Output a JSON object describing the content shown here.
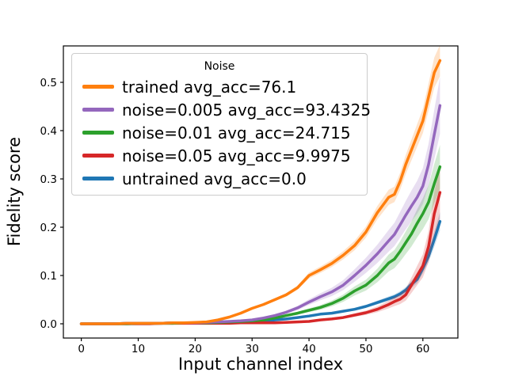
{
  "chart_data": {
    "type": "line",
    "title": "",
    "xlabel": "Input channel index",
    "ylabel": "Fidelity score",
    "xlim": [
      -3.15,
      66.15
    ],
    "ylim": [
      -0.0295,
      0.5754
    ],
    "xticks": [
      0,
      10,
      20,
      30,
      40,
      50,
      60
    ],
    "ytick_labels": [
      "0.0",
      "0.1",
      "0.2",
      "0.3",
      "0.4",
      "0.5"
    ],
    "grid": false,
    "legend": {
      "title": "Noise",
      "position": "upper left"
    },
    "x": [
      0,
      2,
      4,
      6,
      8,
      10,
      12,
      14,
      16,
      18,
      20,
      22,
      24,
      26,
      28,
      30,
      32,
      34,
      36,
      38,
      40,
      42,
      44,
      46,
      48,
      50,
      52,
      54,
      55,
      56,
      57,
      58,
      59,
      60,
      61,
      62,
      63
    ],
    "series": [
      {
        "name": "trained",
        "label": "trained avg_acc=76.1",
        "color": "#ff7f0e",
        "band_frac": 0.06,
        "zorder": 5,
        "values": [
          0,
          0,
          0,
          0,
          0.001,
          0.001,
          0.001,
          0.001,
          0.002,
          0.002,
          0.003,
          0.004,
          0.008,
          0.014,
          0.022,
          0.032,
          0.04,
          0.05,
          0.06,
          0.075,
          0.1,
          0.112,
          0.125,
          0.142,
          0.162,
          0.19,
          0.23,
          0.262,
          0.268,
          0.295,
          0.33,
          0.36,
          0.39,
          0.42,
          0.47,
          0.52,
          0.545
        ]
      },
      {
        "name": "noise-0.005",
        "label": "noise=0.005 avg_acc=93.4325",
        "color": "#9467bd",
        "band_frac": 0.13,
        "zorder": 4,
        "values": [
          0,
          0,
          0,
          0,
          0.001,
          0.001,
          0.001,
          0.001,
          0.002,
          0.002,
          0.002,
          0.003,
          0.004,
          0.005,
          0.006,
          0.008,
          0.012,
          0.017,
          0.024,
          0.033,
          0.045,
          0.056,
          0.066,
          0.08,
          0.1,
          0.121,
          0.145,
          0.172,
          0.185,
          0.205,
          0.225,
          0.244,
          0.262,
          0.285,
          0.33,
          0.392,
          0.452
        ]
      },
      {
        "name": "noise-0.01",
        "label": "noise=0.01 avg_acc=24.715",
        "color": "#2ca02c",
        "band_frac": 0.14,
        "zorder": 3,
        "values": [
          0,
          0,
          0,
          0,
          0,
          0.001,
          0.001,
          0.001,
          0.001,
          0.002,
          0.002,
          0.002,
          0.003,
          0.004,
          0.005,
          0.006,
          0.008,
          0.012,
          0.017,
          0.022,
          0.028,
          0.034,
          0.042,
          0.053,
          0.068,
          0.08,
          0.1,
          0.126,
          0.134,
          0.15,
          0.168,
          0.186,
          0.208,
          0.228,
          0.252,
          0.29,
          0.325
        ]
      },
      {
        "name": "noise-0.05",
        "label": "noise=0.05 avg_acc=9.9975",
        "color": "#d62728",
        "band_frac": 0.2,
        "zorder": 2,
        "values": [
          0,
          0,
          0,
          0,
          0,
          0,
          0,
          0.001,
          0.001,
          0.001,
          0.001,
          0.001,
          0.001,
          0.001,
          0.002,
          0.002,
          0.002,
          0.002,
          0.003,
          0.004,
          0.005,
          0.008,
          0.01,
          0.013,
          0.018,
          0.023,
          0.03,
          0.04,
          0.046,
          0.051,
          0.06,
          0.08,
          0.1,
          0.12,
          0.16,
          0.228,
          0.272
        ]
      },
      {
        "name": "untrained",
        "label": "untrained avg_acc=0.0",
        "color": "#1f77b4",
        "band_frac": 0.09,
        "zorder": 1,
        "values": [
          0,
          0,
          0,
          0,
          0.001,
          0.001,
          0.001,
          0.001,
          0.002,
          0.002,
          0.002,
          0.002,
          0.002,
          0.003,
          0.004,
          0.005,
          0.006,
          0.008,
          0.01,
          0.013,
          0.016,
          0.02,
          0.022,
          0.026,
          0.03,
          0.036,
          0.044,
          0.052,
          0.056,
          0.062,
          0.07,
          0.082,
          0.092,
          0.115,
          0.14,
          0.175,
          0.212
        ]
      }
    ]
  }
}
